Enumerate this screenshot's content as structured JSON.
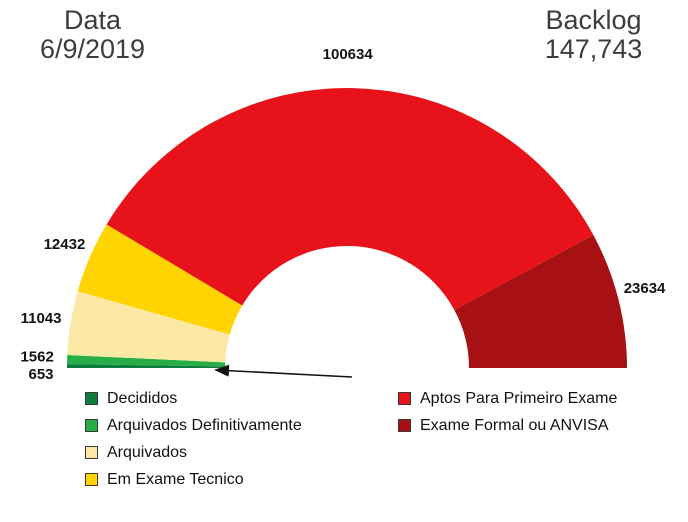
{
  "header": {
    "date_label": "Data",
    "date_value": "6/9/2019",
    "backlog_label": "Backlog",
    "backlog_value": "147,743"
  },
  "chart_data": {
    "type": "pie",
    "variant": "half-donut",
    "start_angle_deg": 180,
    "end_angle_deg": 0,
    "slices": [
      {
        "label": "Decididos",
        "value": 653,
        "color": "#0E7C3C"
      },
      {
        "label": "Arquivados Definitivamente",
        "value": 1562,
        "color": "#27AE49"
      },
      {
        "label": "Arquivados",
        "value": 11043,
        "color": "#FAE8A4"
      },
      {
        "label": "Em Exame Tecnico",
        "value": 12432,
        "color": "#FFD400"
      },
      {
        "label": "Aptos Para Primeiro Exame",
        "value": 100634,
        "color": "#E8131A"
      },
      {
        "label": "Exame Formal ou ANVISA",
        "value": 23634,
        "color": "#A81113"
      }
    ],
    "annotation": "arrow pointing to the smallest slices (Decididos / Arquivados Definitivamente)"
  }
}
